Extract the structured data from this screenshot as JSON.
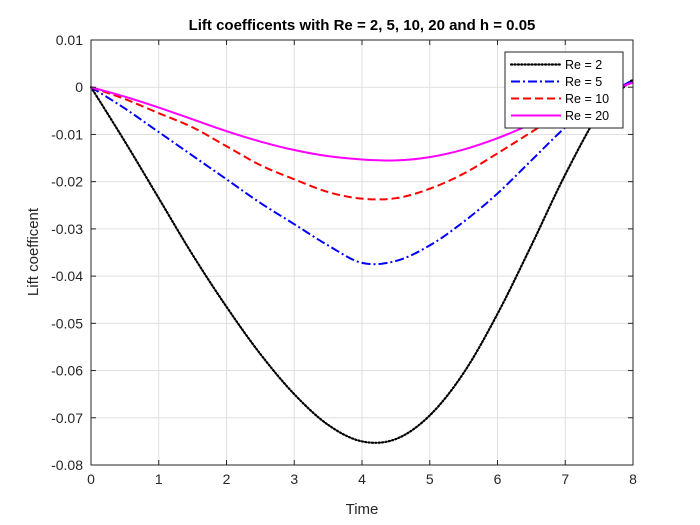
{
  "chart_data": {
    "type": "line",
    "title": "Lift coefficents with Re = 2, 5, 10, 20 and h = 0.05",
    "xlabel": "Time",
    "ylabel": "Lift coefficent",
    "xlim": [
      0,
      8
    ],
    "ylim": [
      -0.08,
      0.01
    ],
    "xticks": [
      0,
      1,
      2,
      3,
      4,
      5,
      6,
      7,
      8
    ],
    "xtick_labels": [
      "0",
      "1",
      "2",
      "3",
      "4",
      "5",
      "6",
      "7",
      "8"
    ],
    "yticks": [
      0.01,
      0,
      -0.01,
      -0.02,
      -0.03,
      -0.04,
      -0.05,
      -0.06,
      -0.07,
      -0.08
    ],
    "ytick_labels": [
      "0.01",
      "0",
      "-0.01",
      "-0.02",
      "-0.03",
      "-0.04",
      "-0.05",
      "-0.06",
      "-0.07",
      "-0.08"
    ],
    "grid": true,
    "legend_position": "top-right",
    "series": [
      {
        "name": "Re = 2",
        "color": "#000000",
        "style": "dotted",
        "x": [
          0,
          0.5,
          1,
          1.5,
          2,
          2.5,
          3,
          3.5,
          4,
          4.5,
          5,
          5.5,
          6,
          6.5,
          7,
          7.5,
          7.9,
          8
        ],
        "y": [
          0,
          -0.0115,
          -0.0235,
          -0.0355,
          -0.0465,
          -0.0565,
          -0.065,
          -0.0715,
          -0.075,
          -0.0745,
          -0.0695,
          -0.0605,
          -0.048,
          -0.0335,
          -0.0185,
          -0.0055,
          0.0005,
          0.0015
        ]
      },
      {
        "name": "Re = 5",
        "color": "#0000ff",
        "style": "dashdot",
        "x": [
          0,
          0.5,
          1,
          1.5,
          2,
          2.5,
          3,
          3.5,
          4,
          4.5,
          5,
          5.5,
          6,
          6.5,
          7,
          7.5,
          8
        ],
        "y": [
          0,
          -0.0045,
          -0.0095,
          -0.0145,
          -0.0195,
          -0.0245,
          -0.029,
          -0.0335,
          -0.0372,
          -0.0368,
          -0.0335,
          -0.0285,
          -0.0225,
          -0.0155,
          -0.0085,
          -0.0025,
          0.0015
        ]
      },
      {
        "name": "Re = 10",
        "color": "#ff0000",
        "style": "dashed",
        "x": [
          0,
          0.5,
          1,
          1.5,
          2,
          2.5,
          3,
          3.5,
          4,
          4.5,
          5,
          5.5,
          6,
          6.5,
          7,
          7.5,
          8
        ],
        "y": [
          0,
          -0.0025,
          -0.0055,
          -0.0085,
          -0.0125,
          -0.0165,
          -0.0195,
          -0.0222,
          -0.0236,
          -0.0235,
          -0.0215,
          -0.0183,
          -0.014,
          -0.0095,
          -0.005,
          -0.0015,
          0.001
        ]
      },
      {
        "name": "Re = 20",
        "color": "#ff00ff",
        "style": "solid",
        "x": [
          0,
          0.5,
          1,
          1.5,
          2,
          2.5,
          3,
          3.5,
          4,
          4.5,
          5,
          5.5,
          6,
          6.5,
          7,
          7.5,
          8
        ],
        "y": [
          0,
          -0.002,
          -0.0043,
          -0.0068,
          -0.0093,
          -0.0115,
          -0.0133,
          -0.0146,
          -0.0153,
          -0.0155,
          -0.0148,
          -0.0132,
          -0.0108,
          -0.0078,
          -0.0045,
          -0.0015,
          0.001
        ]
      }
    ]
  }
}
